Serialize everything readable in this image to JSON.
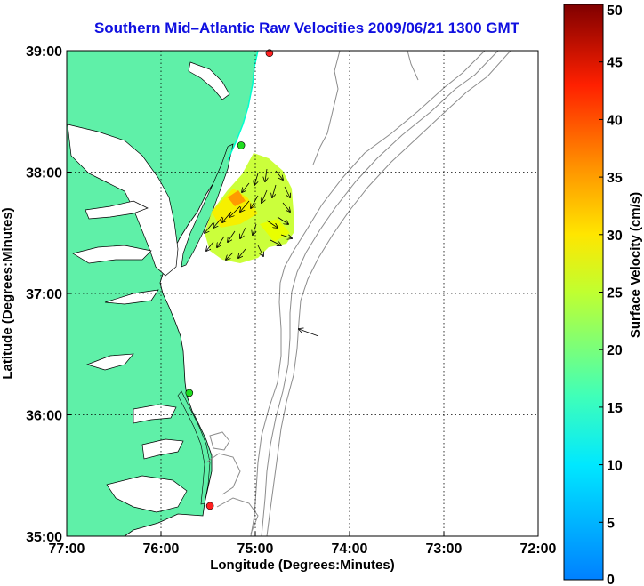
{
  "title": "Southern Mid–Atlantic Raw Velocities 2009/06/21 1300 GMT",
  "map": {
    "xlabel": "Longitude (Degrees:Minutes)",
    "ylabel": "Latitude (Degrees:Minutes)",
    "lon_range": [
      -77,
      -72
    ],
    "lat_range": [
      35,
      39
    ],
    "lon_ticks": [
      "77:00",
      "76:00",
      "75:00",
      "74:00",
      "73:00",
      "72:00"
    ],
    "lat_ticks": [
      "39:00",
      "38:00",
      "37:00",
      "36:00",
      "35:00"
    ],
    "grid": "dotted",
    "land_color": "#5ff0a8",
    "water_color": "#ffffff",
    "bathymetry_color": "#8c8c8c",
    "stations": [
      {
        "lon": -74.85,
        "lat": 38.98,
        "color": "#ff2020"
      },
      {
        "lon": -75.15,
        "lat": 38.22,
        "color": "#20dd20"
      },
      {
        "lon": -75.7,
        "lat": 36.18,
        "color": "#20dd20"
      },
      {
        "lon": -75.48,
        "lat": 35.25,
        "color": "#ff2020"
      }
    ]
  },
  "colorbar": {
    "label": "Surface Velocity (cm/s)",
    "min": 0,
    "max": 50,
    "ticks": [
      "0",
      "5",
      "10",
      "15",
      "20",
      "25",
      "30",
      "35",
      "40",
      "45",
      "50"
    ],
    "colormap": "jet"
  }
}
